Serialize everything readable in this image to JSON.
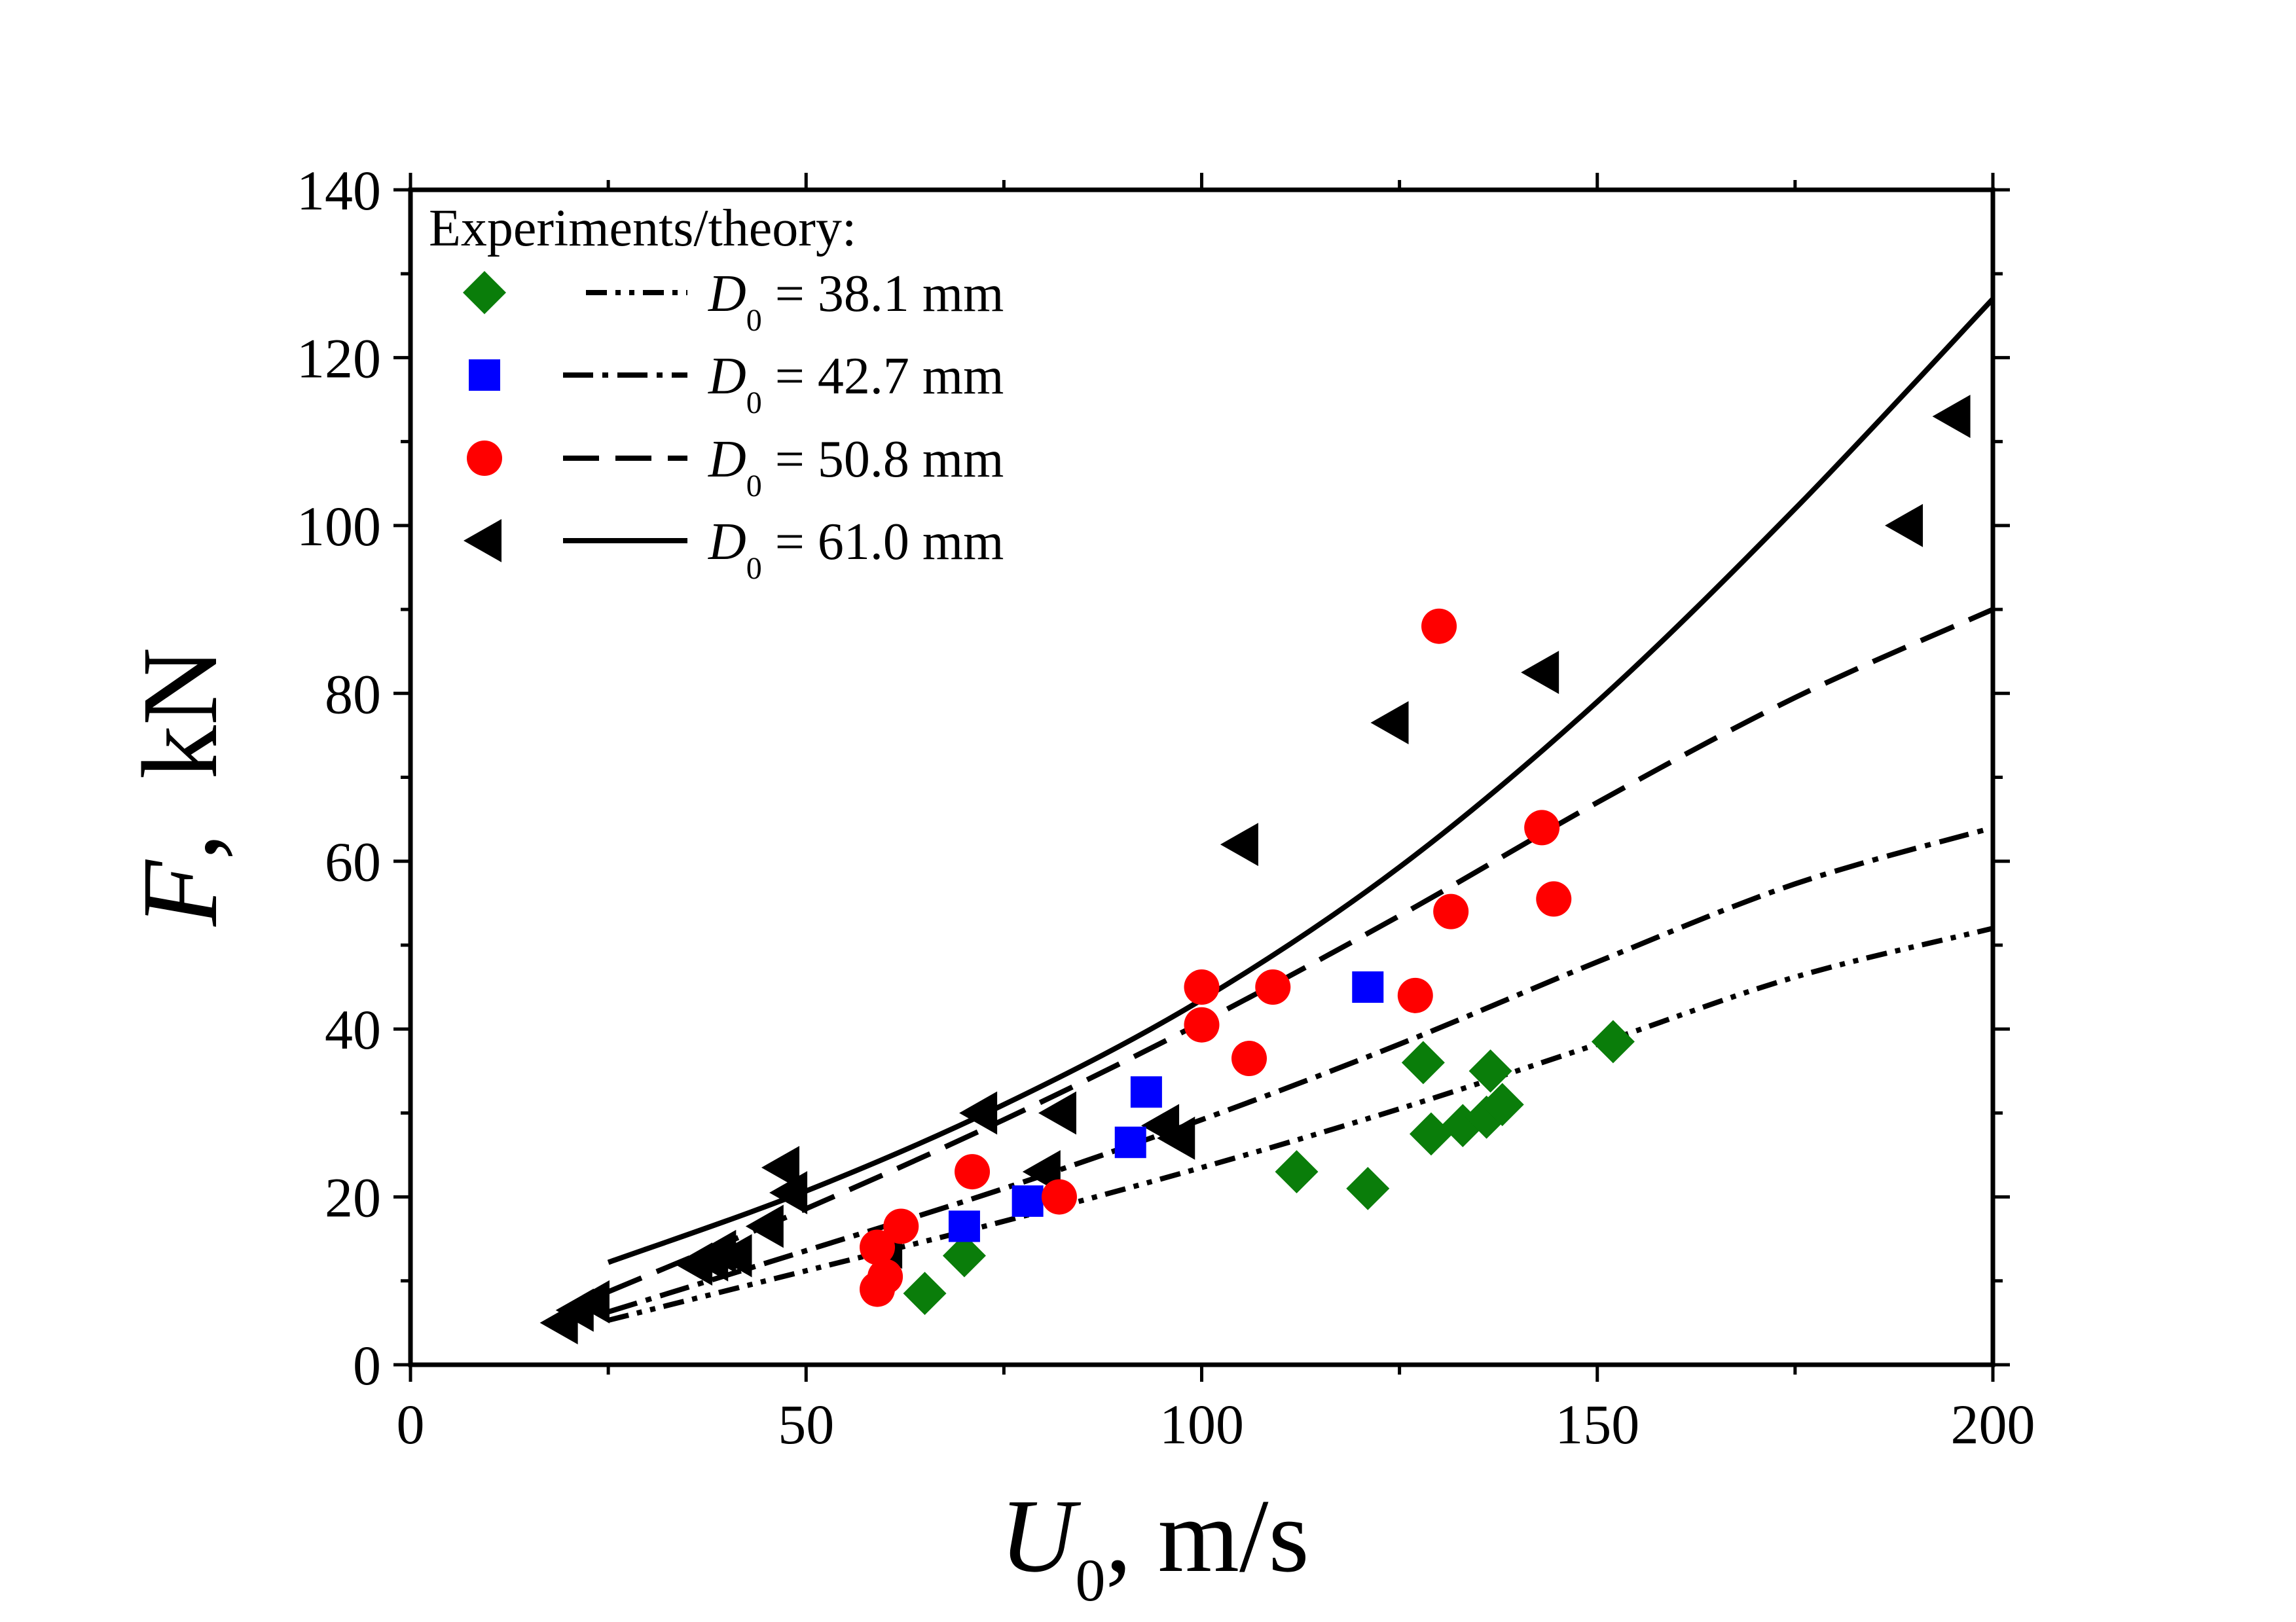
{
  "chart_data": {
    "type": "scatter",
    "title": "",
    "xlabel": {
      "symbol": "U",
      "subscript": "0",
      "unit": ", m/s"
    },
    "ylabel": {
      "symbol": "F",
      "unit": ",  kN"
    },
    "xlim": [
      0,
      200
    ],
    "ylim": [
      0,
      140
    ],
    "x_ticks": [
      0,
      50,
      100,
      150,
      200
    ],
    "y_ticks": [
      0,
      20,
      40,
      60,
      80,
      100,
      120,
      140
    ],
    "x_tick_labels": [
      "0",
      "50",
      "100",
      "150",
      "200"
    ],
    "y_tick_labels": [
      "0",
      "20",
      "40",
      "60",
      "80",
      "100",
      "120",
      "140"
    ],
    "grid": false,
    "legend": {
      "position": "top-left",
      "title": "Experiments/theory:",
      "symbol": "D",
      "subscript": "0"
    },
    "series": [
      {
        "name": "D0 = 38.1 mm",
        "label_value": "= 38.1 mm",
        "marker": "diamond",
        "line_style": "dash-dot-dot",
        "color": "#0a7d0a",
        "points": [
          [
            65,
            8.5
          ],
          [
            70,
            13
          ],
          [
            112,
            23
          ],
          [
            121,
            21
          ],
          [
            128,
            36
          ],
          [
            129,
            27.5
          ],
          [
            133,
            28.5
          ],
          [
            136,
            29.5
          ],
          [
            136.5,
            35
          ],
          [
            138,
            31
          ],
          [
            152,
            38.5
          ]
        ],
        "curve": [
          [
            25,
            5.3
          ],
          [
            50,
            11.2
          ],
          [
            75,
            17.1
          ],
          [
            100,
            23.5
          ],
          [
            125,
            30.5
          ],
          [
            150,
            38.2
          ],
          [
            175,
            46.2
          ],
          [
            200,
            52
          ]
        ]
      },
      {
        "name": "D0 = 42.7 mm",
        "label_value": "= 42.7 mm",
        "marker": "square",
        "line_style": "dash-dot",
        "color": "#0000ff",
        "points": [
          [
            70,
            16.5
          ],
          [
            78,
            19.5
          ],
          [
            91,
            26.5
          ],
          [
            93,
            32.5
          ],
          [
            121,
            45
          ]
        ],
        "curve": [
          [
            25,
            6.3
          ],
          [
            50,
            13.6
          ],
          [
            75,
            21.0
          ],
          [
            100,
            29.2
          ],
          [
            125,
            38.2
          ],
          [
            150,
            48.0
          ],
          [
            175,
            57.3
          ],
          [
            200,
            64
          ]
        ]
      },
      {
        "name": "D0 = 50.8 mm",
        "label_value": "= 50.8 mm",
        "marker": "circle",
        "line_style": "dash",
        "color": "#ff0000",
        "points": [
          [
            59,
            9
          ],
          [
            59,
            14
          ],
          [
            60,
            10.5
          ],
          [
            62,
            16.5
          ],
          [
            71,
            23
          ],
          [
            82,
            20
          ],
          [
            100,
            45
          ],
          [
            100,
            40.5
          ],
          [
            106,
            36.5
          ],
          [
            109,
            45
          ],
          [
            127,
            44
          ],
          [
            130,
            88
          ],
          [
            131.5,
            54
          ],
          [
            143,
            64
          ],
          [
            144.5,
            55.5
          ]
        ],
        "curve": [
          [
            25,
            8.7
          ],
          [
            50,
            18.6
          ],
          [
            75,
            29.2
          ],
          [
            100,
            40.8
          ],
          [
            125,
            53.5
          ],
          [
            150,
            67.0
          ],
          [
            175,
            79.5
          ],
          [
            200,
            90
          ]
        ]
      },
      {
        "name": "D0 = 61.0 mm",
        "label_value": "= 61.0 mm",
        "marker": "triangle-left",
        "line_style": "solid",
        "color": "#000000",
        "points": [
          [
            19,
            5
          ],
          [
            21,
            6.5
          ],
          [
            23,
            7.5
          ],
          [
            36,
            12
          ],
          [
            38,
            12.5
          ],
          [
            39,
            13.5
          ],
          [
            41,
            13
          ],
          [
            45,
            16.5
          ],
          [
            47,
            23.5
          ],
          [
            48,
            20.5
          ],
          [
            60,
            14
          ],
          [
            72,
            30
          ],
          [
            80,
            23
          ],
          [
            82,
            30
          ],
          [
            95,
            28.5
          ],
          [
            97,
            27
          ],
          [
            105,
            62
          ],
          [
            124,
            76.5
          ],
          [
            143,
            82.5
          ],
          [
            189,
            100
          ],
          [
            195,
            113
          ]
        ],
        "curve": [
          [
            25,
            12.2
          ],
          [
            50,
            20.7
          ],
          [
            75,
            31.0
          ],
          [
            100,
            43.5
          ],
          [
            125,
            59.3
          ],
          [
            150,
            79.0
          ],
          [
            175,
            102.0
          ],
          [
            200,
            127
          ]
        ]
      }
    ]
  }
}
